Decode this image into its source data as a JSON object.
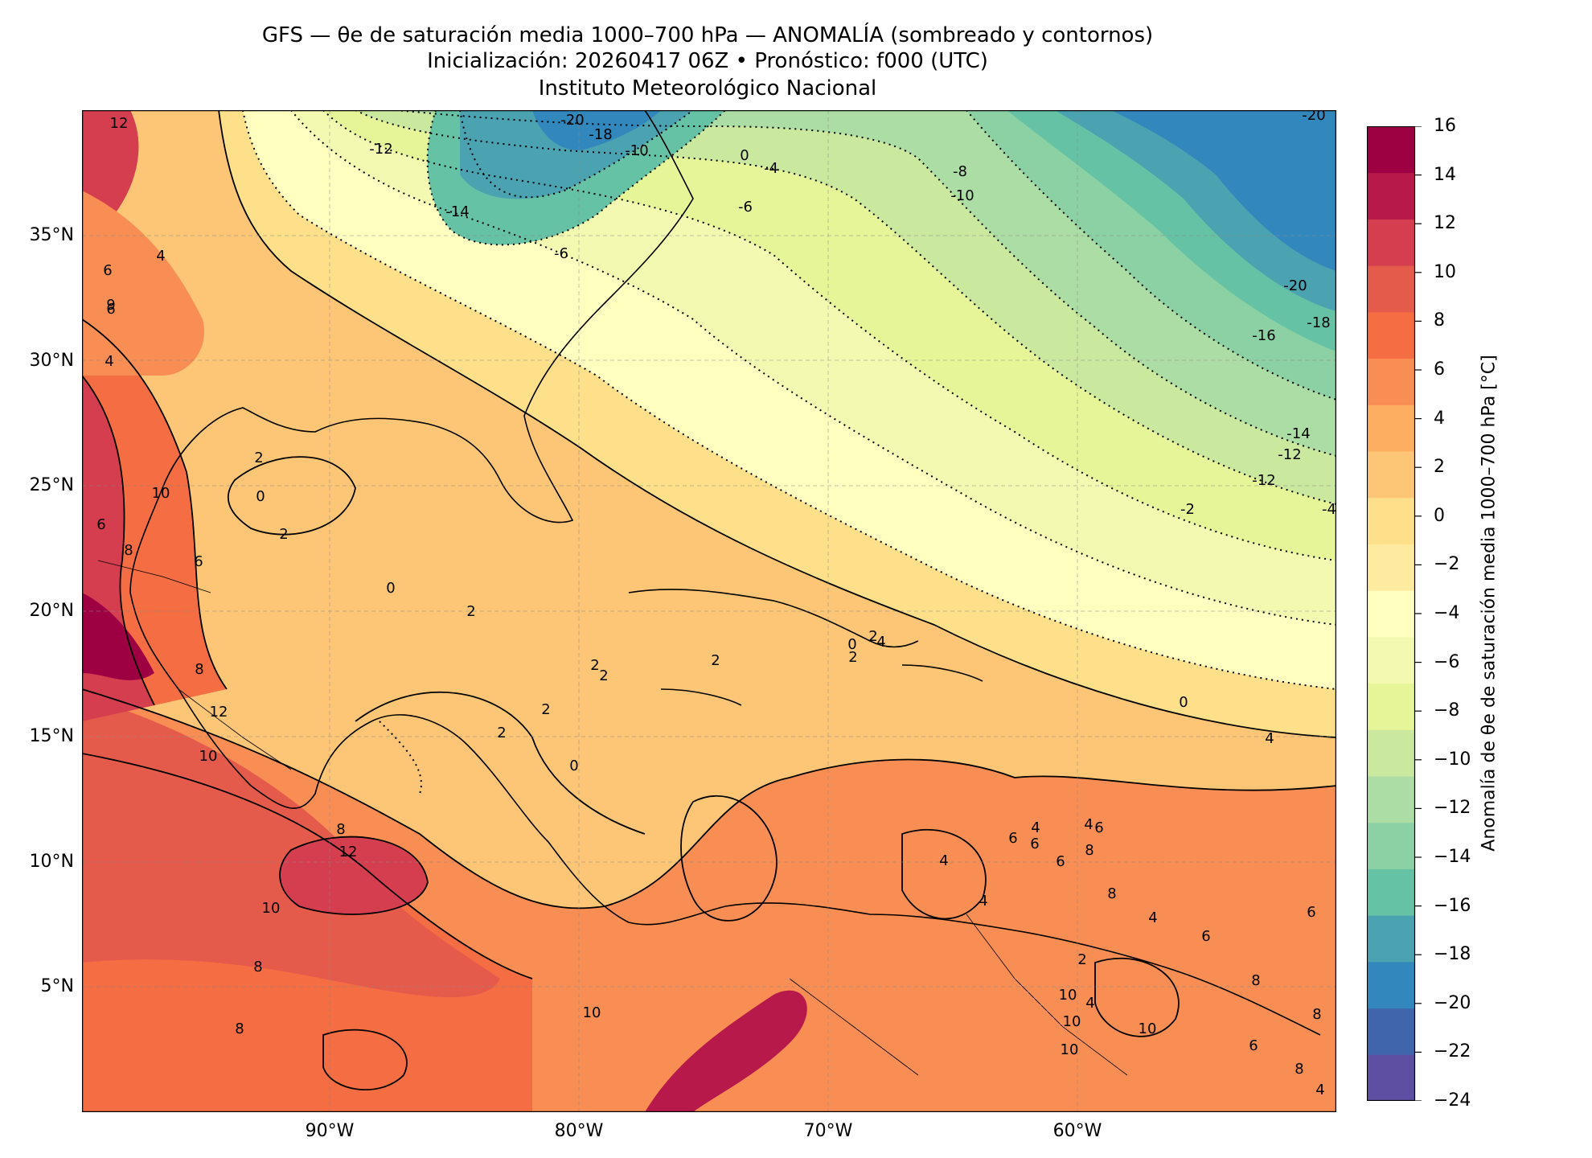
{
  "title": {
    "line1": "GFS — θe de saturación media 1000–700 hPa — ANOMALÍA (sombreado y contornos)",
    "line2": "Inicialización: 20260417 06Z   •   Pronóstico: f000 (UTC)",
    "line3": "Instituto Meteorológico Nacional"
  },
  "axes": {
    "lat_ticks": [
      "35°N",
      "30°N",
      "25°N",
      "20°N",
      "15°N",
      "10°N",
      "5°N"
    ],
    "lon_ticks": [
      "90°W",
      "80°W",
      "70°W",
      "60°W"
    ]
  },
  "colorbar": {
    "label": "Anomalía de θe de saturación media 1000–700 hPa [°C]",
    "ticks": [
      "16",
      "14",
      "12",
      "10",
      "8",
      "6",
      "4",
      "2",
      "0",
      "−2",
      "−4",
      "−6",
      "−8",
      "−10",
      "−12",
      "−14",
      "−16",
      "−18",
      "−20",
      "−22",
      "−24"
    ],
    "colors": [
      "#5e4fa2",
      "#4165ad",
      "#3288bd",
      "#4ba2b1",
      "#66c2a5",
      "#8bd1a4",
      "#abdda4",
      "#cbe99e",
      "#e6f598",
      "#f3f9b0",
      "#ffffbf",
      "#feeb9f",
      "#fee08b",
      "#fdc676",
      "#fdae61",
      "#f88e54",
      "#f46d43",
      "#e55b4b",
      "#d53e4f",
      "#b71a4a",
      "#9e0142"
    ]
  },
  "contour_labels": [
    {
      "text": "-20"
    },
    {
      "text": "-18"
    },
    {
      "text": "-10"
    },
    {
      "text": "-12"
    },
    {
      "text": "-14"
    },
    {
      "text": "-6"
    },
    {
      "text": "0"
    },
    {
      "text": "-4"
    },
    {
      "text": "-6"
    },
    {
      "text": "-8"
    },
    {
      "text": "-10"
    },
    {
      "text": "-20"
    },
    {
      "text": "-20"
    },
    {
      "text": "-18"
    },
    {
      "text": "-16"
    },
    {
      "text": "-14"
    },
    {
      "text": "-12"
    },
    {
      "text": "-12"
    },
    {
      "text": "-2"
    },
    {
      "text": "-4"
    },
    {
      "text": "0"
    },
    {
      "text": "4"
    },
    {
      "text": "2"
    },
    {
      "text": "0"
    },
    {
      "text": "2"
    },
    {
      "text": "0"
    },
    {
      "text": "2"
    },
    {
      "text": "2"
    },
    {
      "text": "2"
    },
    {
      "text": "2"
    },
    {
      "text": "2"
    },
    {
      "text": "2"
    },
    {
      "text": "0"
    },
    {
      "text": "2"
    },
    {
      "text": "2"
    },
    {
      "text": "0"
    },
    {
      "text": "4"
    },
    {
      "text": "12"
    },
    {
      "text": "6"
    },
    {
      "text": "4"
    },
    {
      "text": "6"
    },
    {
      "text": "9"
    },
    {
      "text": "4"
    },
    {
      "text": "10"
    },
    {
      "text": "6"
    },
    {
      "text": "8"
    },
    {
      "text": "6"
    },
    {
      "text": "8"
    },
    {
      "text": "12"
    },
    {
      "text": "10"
    },
    {
      "text": "8"
    },
    {
      "text": "12"
    },
    {
      "text": "10"
    },
    {
      "text": "10"
    },
    {
      "text": "8"
    },
    {
      "text": "8"
    },
    {
      "text": "4"
    },
    {
      "text": "4"
    },
    {
      "text": "6"
    },
    {
      "text": "8"
    },
    {
      "text": "4"
    },
    {
      "text": "8"
    },
    {
      "text": "10"
    },
    {
      "text": "6"
    },
    {
      "text": "4"
    },
    {
      "text": "6"
    },
    {
      "text": "6"
    },
    {
      "text": "2"
    },
    {
      "text": "4"
    },
    {
      "text": "6"
    },
    {
      "text": "6"
    },
    {
      "text": "8"
    },
    {
      "text": "10"
    },
    {
      "text": "10"
    },
    {
      "text": "4"
    },
    {
      "text": "10"
    },
    {
      "text": "8"
    },
    {
      "text": "6"
    },
    {
      "text": "8"
    },
    {
      "text": "4"
    }
  ]
}
